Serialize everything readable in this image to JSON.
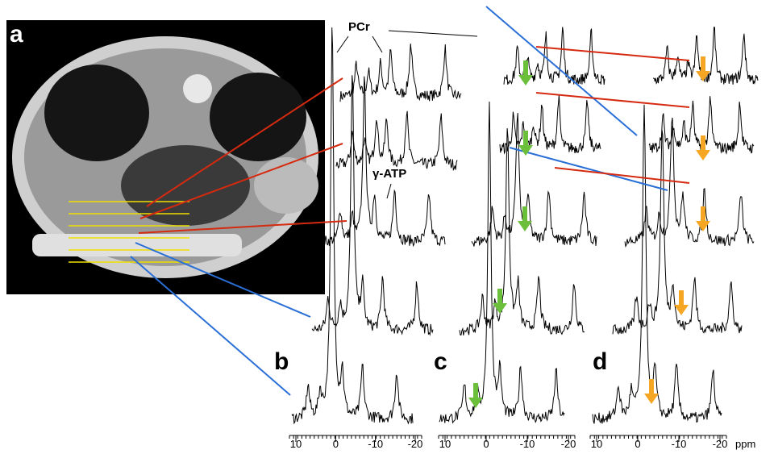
{
  "panels": {
    "a": "a",
    "b": "b",
    "c": "c",
    "d": "d"
  },
  "annotations": {
    "pcr": "PCr",
    "gatp": "γ-ATP"
  },
  "axes": [
    {
      "ticks": [
        10,
        0,
        -10,
        -20
      ]
    },
    {
      "ticks": [
        10,
        0,
        -10,
        -20
      ]
    },
    {
      "ticks": [
        10,
        0,
        -10,
        -20
      ]
    }
  ],
  "unit": "ppm"
}
